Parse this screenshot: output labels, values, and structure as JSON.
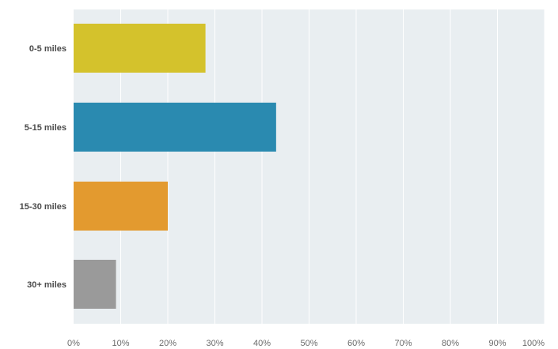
{
  "chart_data": {
    "type": "bar",
    "orientation": "horizontal",
    "title": "",
    "xlabel": "",
    "ylabel": "",
    "categories": [
      "0-5 miles",
      "5-15 miles",
      "15-30 miles",
      "30+ miles"
    ],
    "values": [
      28,
      43,
      20,
      9
    ],
    "unit": "%",
    "xlim": [
      0,
      100
    ],
    "x_ticks": [
      "0%",
      "10%",
      "20%",
      "30%",
      "40%",
      "50%",
      "60%",
      "70%",
      "80%",
      "90%",
      "100%"
    ],
    "bar_colors": [
      "#d4c22c",
      "#2a8ab0",
      "#e39a2f",
      "#9a9a9a"
    ],
    "grid": true,
    "legend": "none"
  },
  "colors": {
    "plot_background": "#e9eef1",
    "gridline": "#ffffff"
  }
}
